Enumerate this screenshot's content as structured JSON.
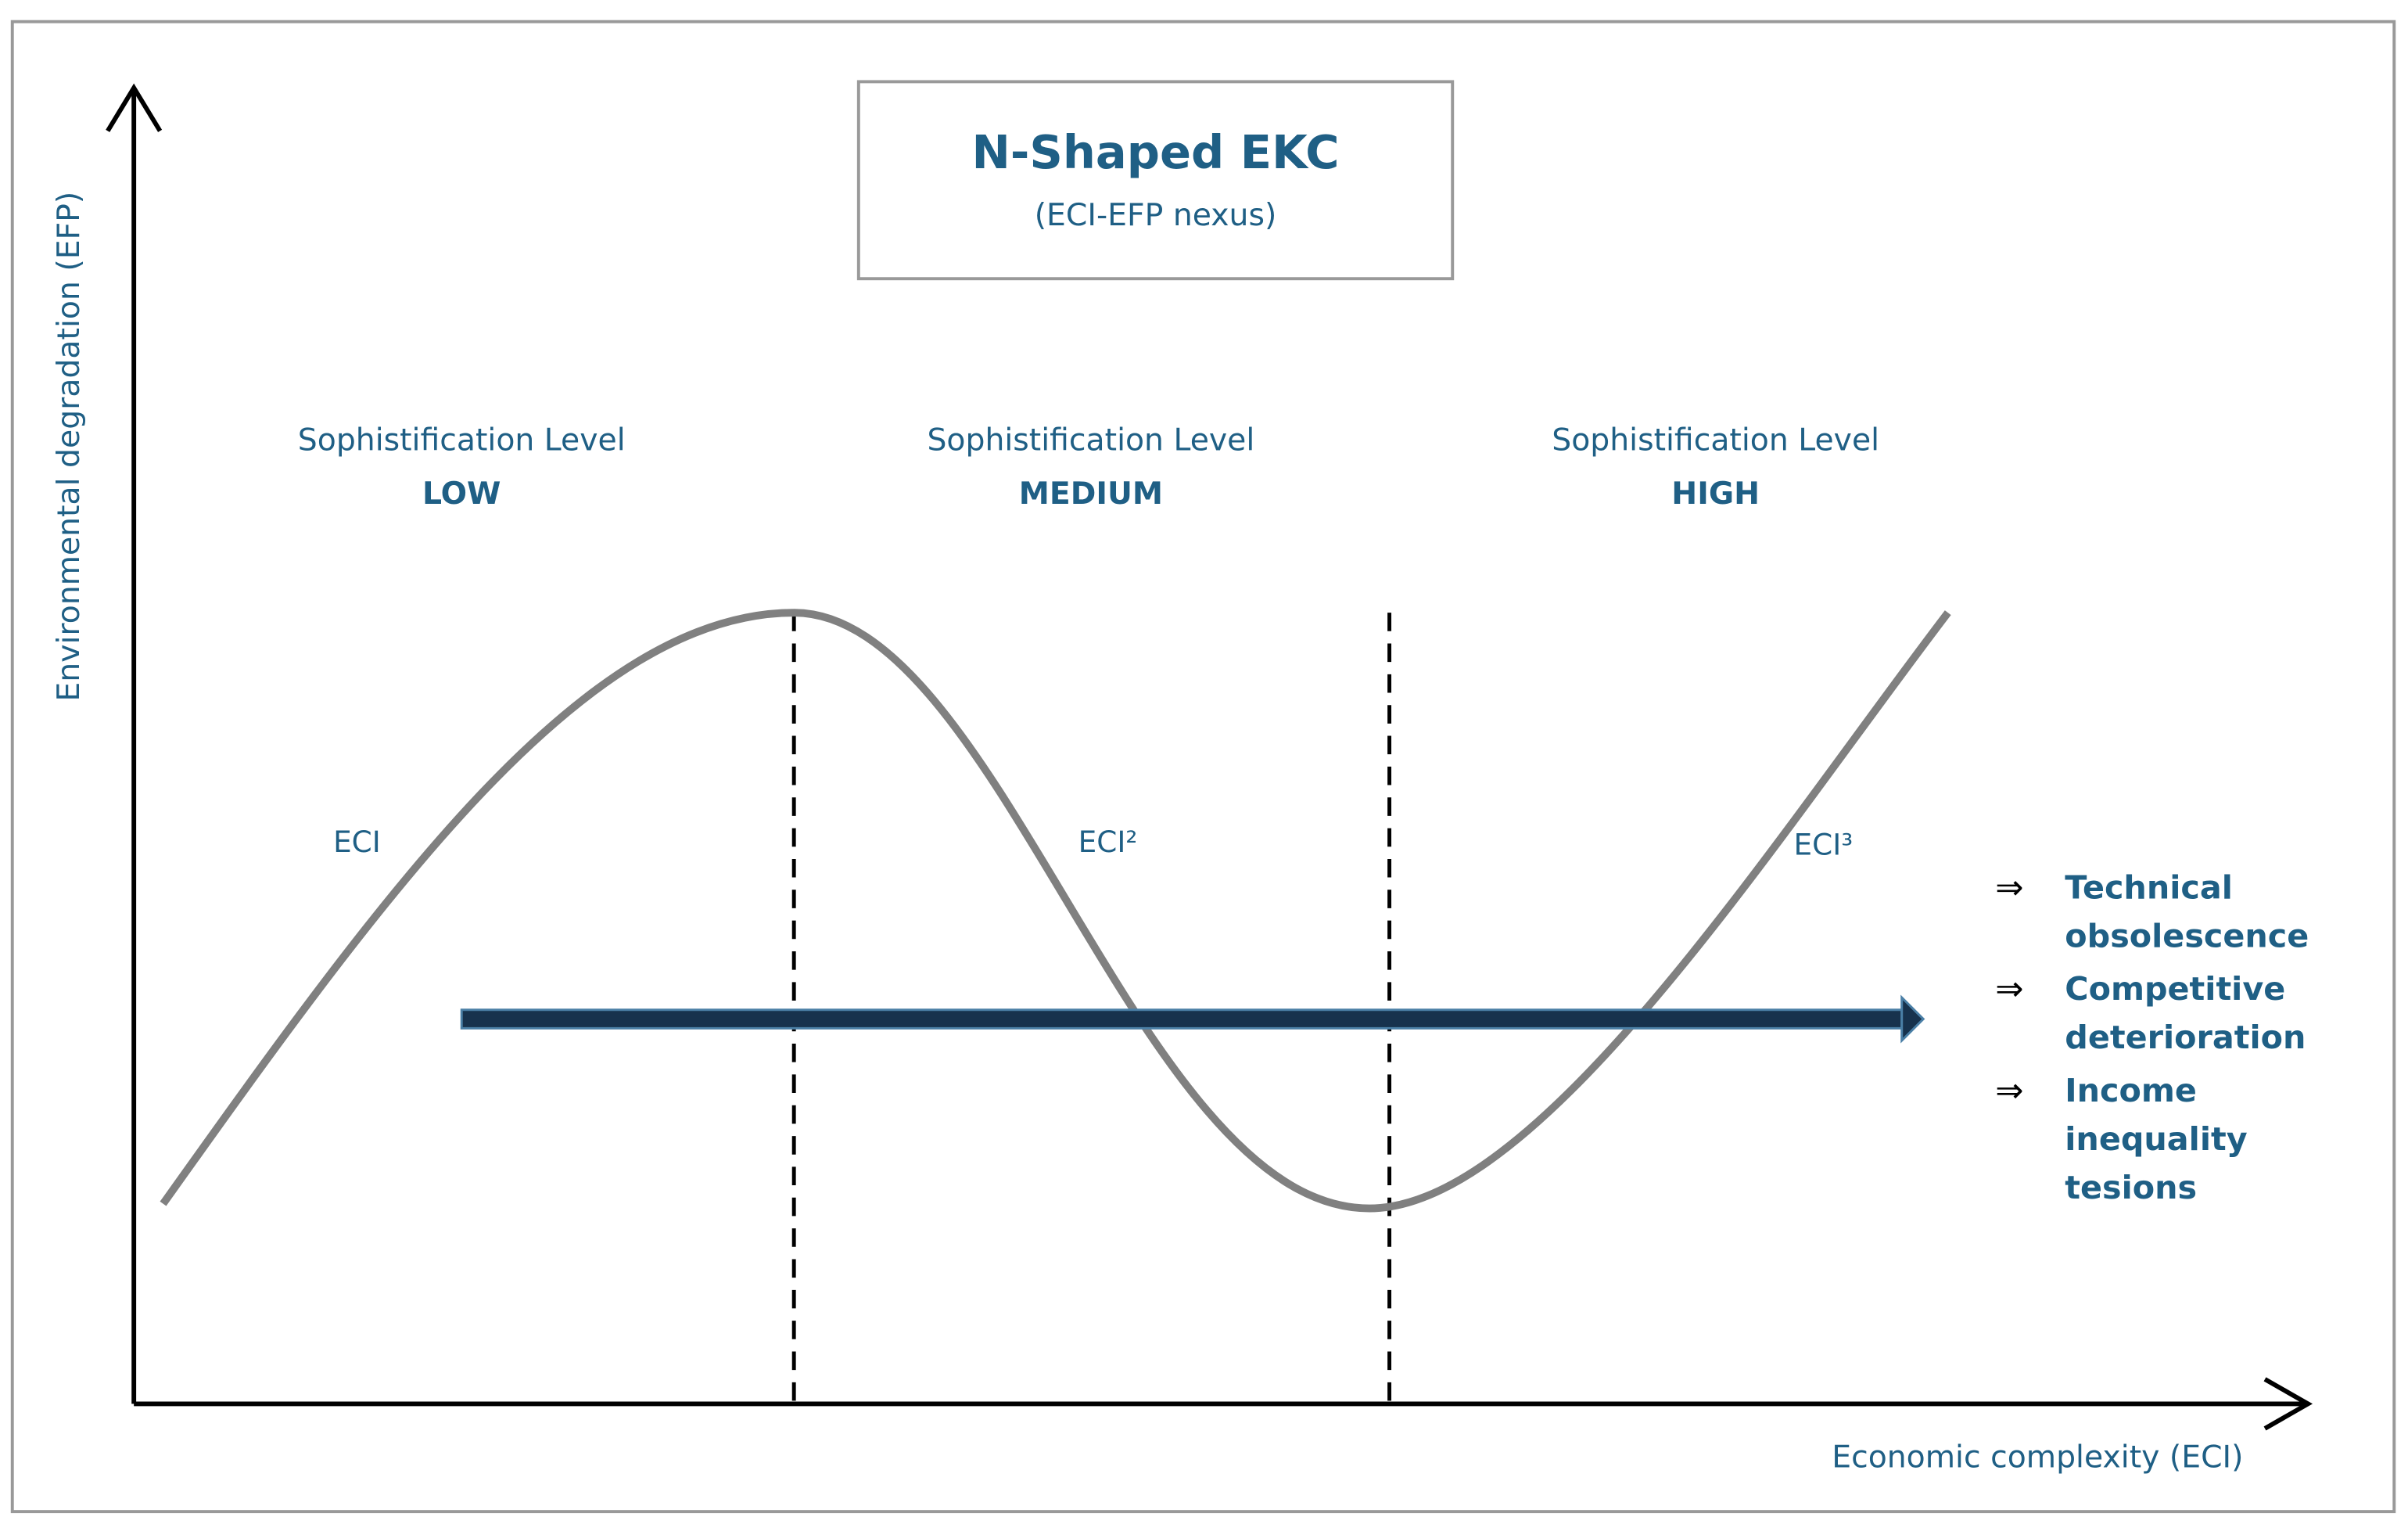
{
  "title": "N-Shaped EKC",
  "subtitle": "(ECI-EFP nexus)",
  "y_axis_label": "Environmental degradation (EFP)",
  "x_axis_label": "Economic complexity (ECI)",
  "levels": [
    {
      "caption": "Sophistification Level",
      "level": "LOW"
    },
    {
      "caption": "Sophistification Level",
      "level": "MEDIUM"
    },
    {
      "caption": "Sophistification Level",
      "level": "HIGH"
    }
  ],
  "curve_labels": [
    "ECI",
    "ECI²",
    "ECI³"
  ],
  "consequences": [
    [
      "Technical",
      "obsolescence"
    ],
    [
      "Competitive",
      "deterioration"
    ],
    [
      "Income",
      "inequality",
      "tesions"
    ]
  ]
}
